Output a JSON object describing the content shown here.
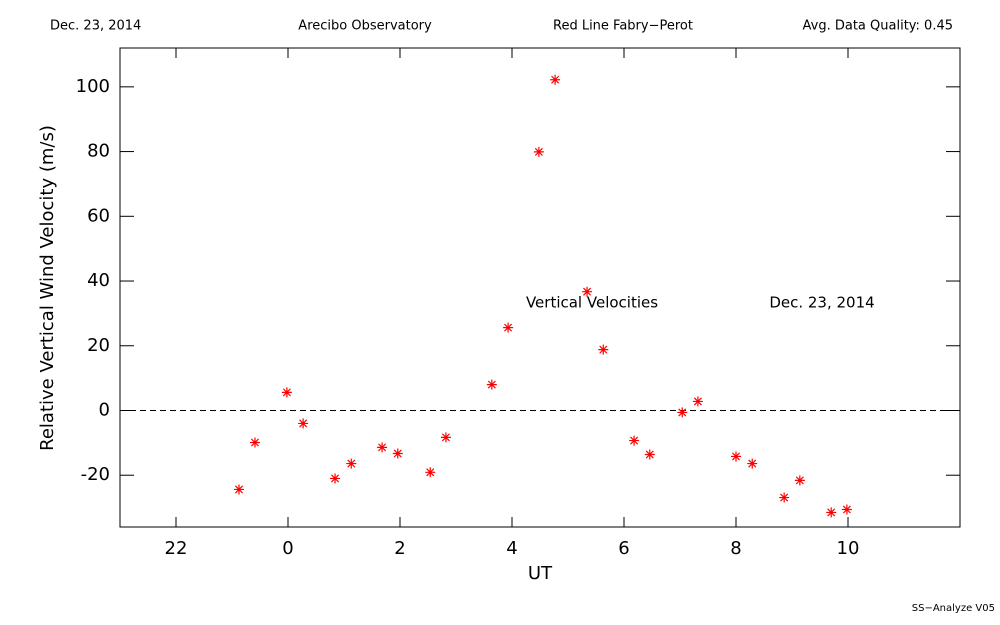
{
  "chart_data": {
    "type": "scatter",
    "header": [
      "Dec. 23, 2014",
      "Arecibo Observatory",
      "Red Line Fabry−Perot",
      "Avg. Data Quality: 0.45"
    ],
    "footer": "SS−Analyze V05",
    "x_label": "UT",
    "y_label": "Relative Vertical Wind Velocity (m/s)",
    "annotations": [
      "Vertical Velocities",
      "Dec. 23, 2014"
    ],
    "color": "#ff0000",
    "reference_line": 0,
    "xlim": [
      -3,
      12
    ],
    "xticks": [
      {
        "value": -2,
        "label": "22"
      },
      0,
      2,
      4,
      6,
      8,
      10
    ],
    "ylim": [
      -36,
      112
    ],
    "yticks": [
      -20,
      0,
      20,
      40,
      60,
      80,
      100
    ],
    "x": [
      -0.875,
      -0.59,
      -0.02,
      0.27,
      0.84,
      1.13,
      1.68,
      1.96,
      2.54,
      2.82,
      3.64,
      3.93,
      4.48,
      4.77,
      5.34,
      5.63,
      6.18,
      6.46,
      7.04,
      7.32,
      8.0,
      8.29,
      8.86,
      9.14,
      9.7,
      9.98
    ],
    "values": [
      -24.4,
      -9.9,
      5.6,
      -4.0,
      -21.0,
      -16.4,
      -11.4,
      -13.3,
      -19.1,
      -8.3,
      8.0,
      25.6,
      79.9,
      102.2,
      36.7,
      18.8,
      -9.3,
      -13.6,
      -0.6,
      2.8,
      -14.2,
      -16.4,
      -26.9,
      -21.6,
      -31.5,
      -30.6
    ]
  }
}
